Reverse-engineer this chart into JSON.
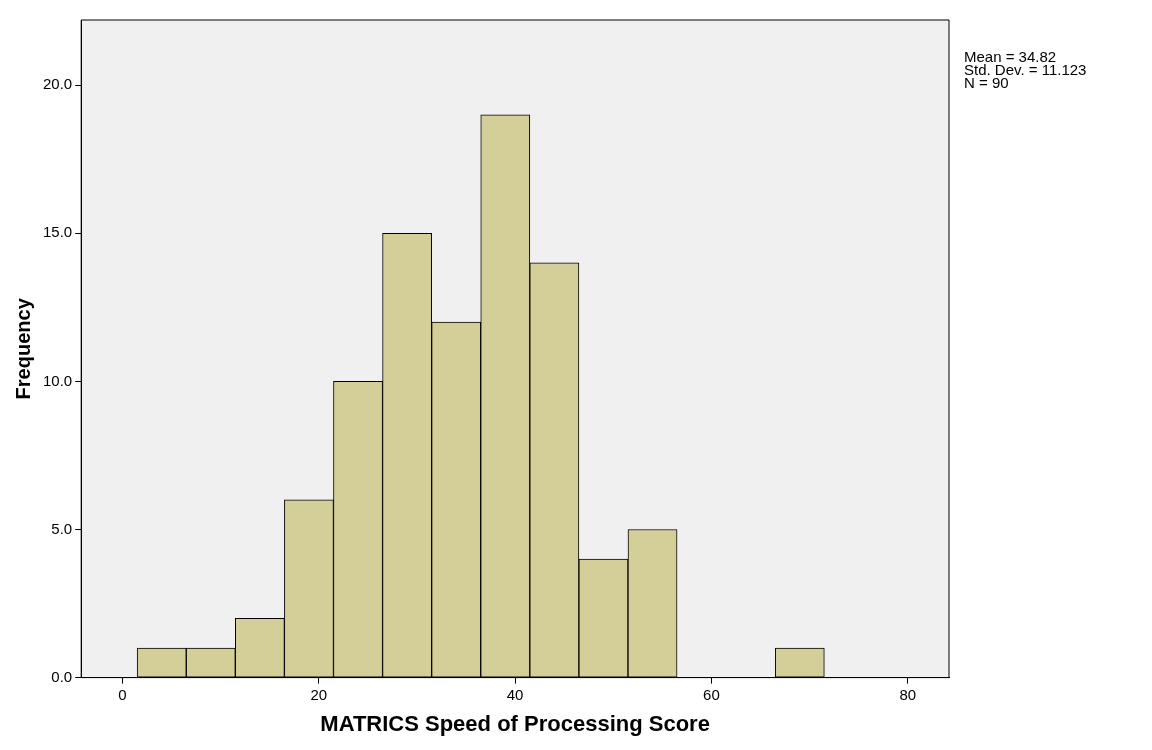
{
  "chart_data": {
    "type": "histogram",
    "xlabel": "MATRICS Speed of Processing Score",
    "ylabel": "Frequency",
    "bins": [
      1.5,
      6.5,
      11.5,
      16.5,
      21.5,
      26.5,
      31.5,
      36.5,
      41.5,
      46.5,
      51.5,
      56.5,
      61.5,
      66.5,
      71.5
    ],
    "values": [
      1,
      1,
      2,
      6,
      10,
      15,
      12,
      19,
      14,
      4,
      5,
      0,
      0,
      1
    ],
    "color": "#d4cf98",
    "xlim": [
      -4.2,
      84.2
    ],
    "xticks": [
      0,
      20,
      40,
      60,
      80
    ],
    "ylim": [
      0,
      22.2
    ],
    "yticks": [
      {
        "value": 0,
        "label": "0.0"
      },
      {
        "value": 5,
        "label": "5.0"
      },
      {
        "value": 10,
        "label": "10.0"
      },
      {
        "value": 15,
        "label": "15.0"
      },
      {
        "value": 20,
        "label": "20.0"
      }
    ],
    "annotations": [
      "Mean = 34.82",
      "Std. Dev. = 11.123",
      "N = 90"
    ],
    "grid": false,
    "legend": false
  }
}
